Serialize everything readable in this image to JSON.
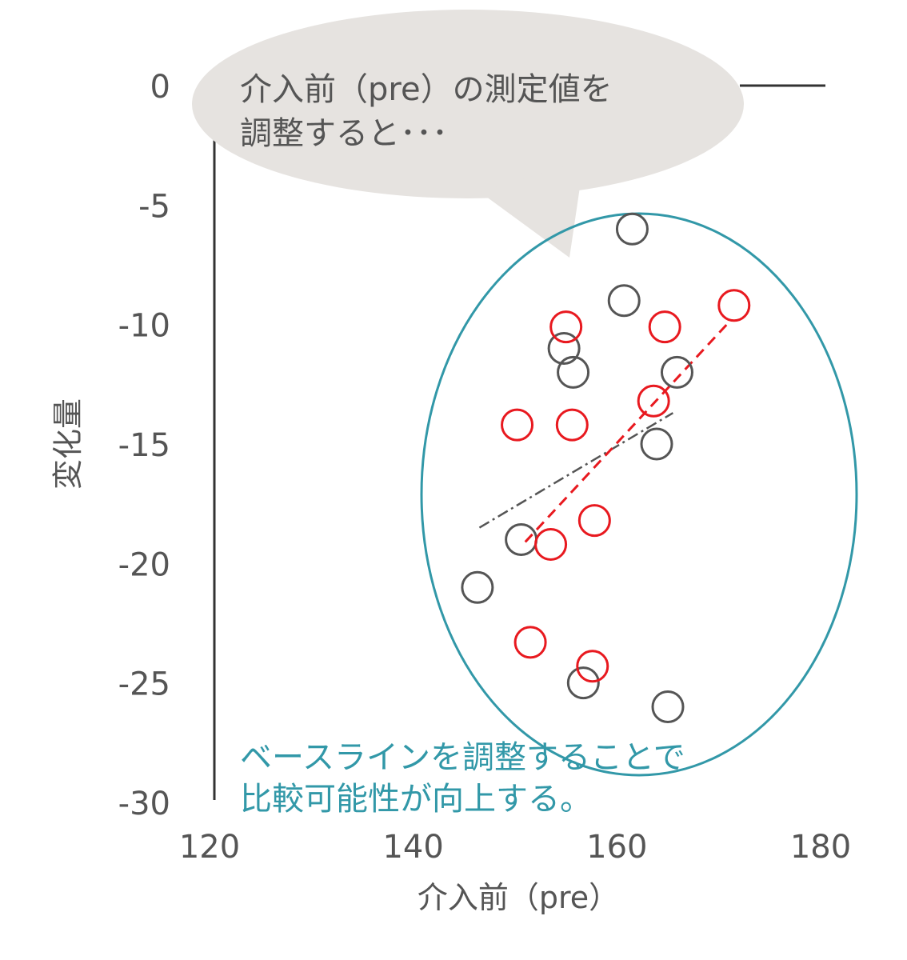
{
  "chart_data": {
    "type": "scatter",
    "title": "",
    "xlabel": "介入前（pre）",
    "ylabel": "変化量",
    "xlim": [
      120,
      180
    ],
    "ylim": [
      -30,
      0
    ],
    "xticks": [
      "120",
      "140",
      "160",
      "180"
    ],
    "yticks": [
      "0",
      "-5",
      "-10",
      "-15",
      "-20",
      "-25",
      "-30"
    ],
    "grid": false,
    "series": [
      {
        "color": "#555555",
        "marker": "open-circle",
        "points": [
          {
            "x": 146.3,
            "y": -21.0
          },
          {
            "x": 150.6,
            "y": -19.0
          },
          {
            "x": 154.8,
            "y": -11.0
          },
          {
            "x": 155.7,
            "y": -12.0
          },
          {
            "x": 156.7,
            "y": -25.0
          },
          {
            "x": 160.7,
            "y": -9.0
          },
          {
            "x": 161.5,
            "y": -6.0
          },
          {
            "x": 163.9,
            "y": -15.0
          },
          {
            "x": 165.9,
            "y": -12.0
          },
          {
            "x": 165.0,
            "y": -26.0
          }
        ],
        "trendline": {
          "style": "dash-dot",
          "x": [
            146.5,
            165.5
          ],
          "y": [
            -18.5,
            -13.7
          ]
        }
      },
      {
        "color": "#e8191f",
        "marker": "open-circle",
        "points": [
          {
            "x": 150.2,
            "y": -14.2
          },
          {
            "x": 151.5,
            "y": -23.3
          },
          {
            "x": 153.5,
            "y": -19.2
          },
          {
            "x": 155.0,
            "y": -10.1
          },
          {
            "x": 155.6,
            "y": -14.2
          },
          {
            "x": 157.8,
            "y": -18.2
          },
          {
            "x": 157.6,
            "y": -24.3
          },
          {
            "x": 163.6,
            "y": -13.2
          },
          {
            "x": 164.7,
            "y": -10.1
          },
          {
            "x": 171.5,
            "y": -9.2
          }
        ],
        "trendline": {
          "style": "dashed",
          "x": [
            151.0,
            171.0
          ],
          "y": [
            -19.1,
            -9.9
          ]
        }
      }
    ],
    "annotations": {
      "callout": [
        "介入前（pre）の測定値を",
        "調整すると･･･"
      ],
      "callout_color": "#e6e3e0",
      "ellipse_color": "#3298a8",
      "note": [
        "ベースラインを調整することで",
        "比較可能性が向上する。"
      ],
      "note_color": "#3298a8"
    }
  }
}
